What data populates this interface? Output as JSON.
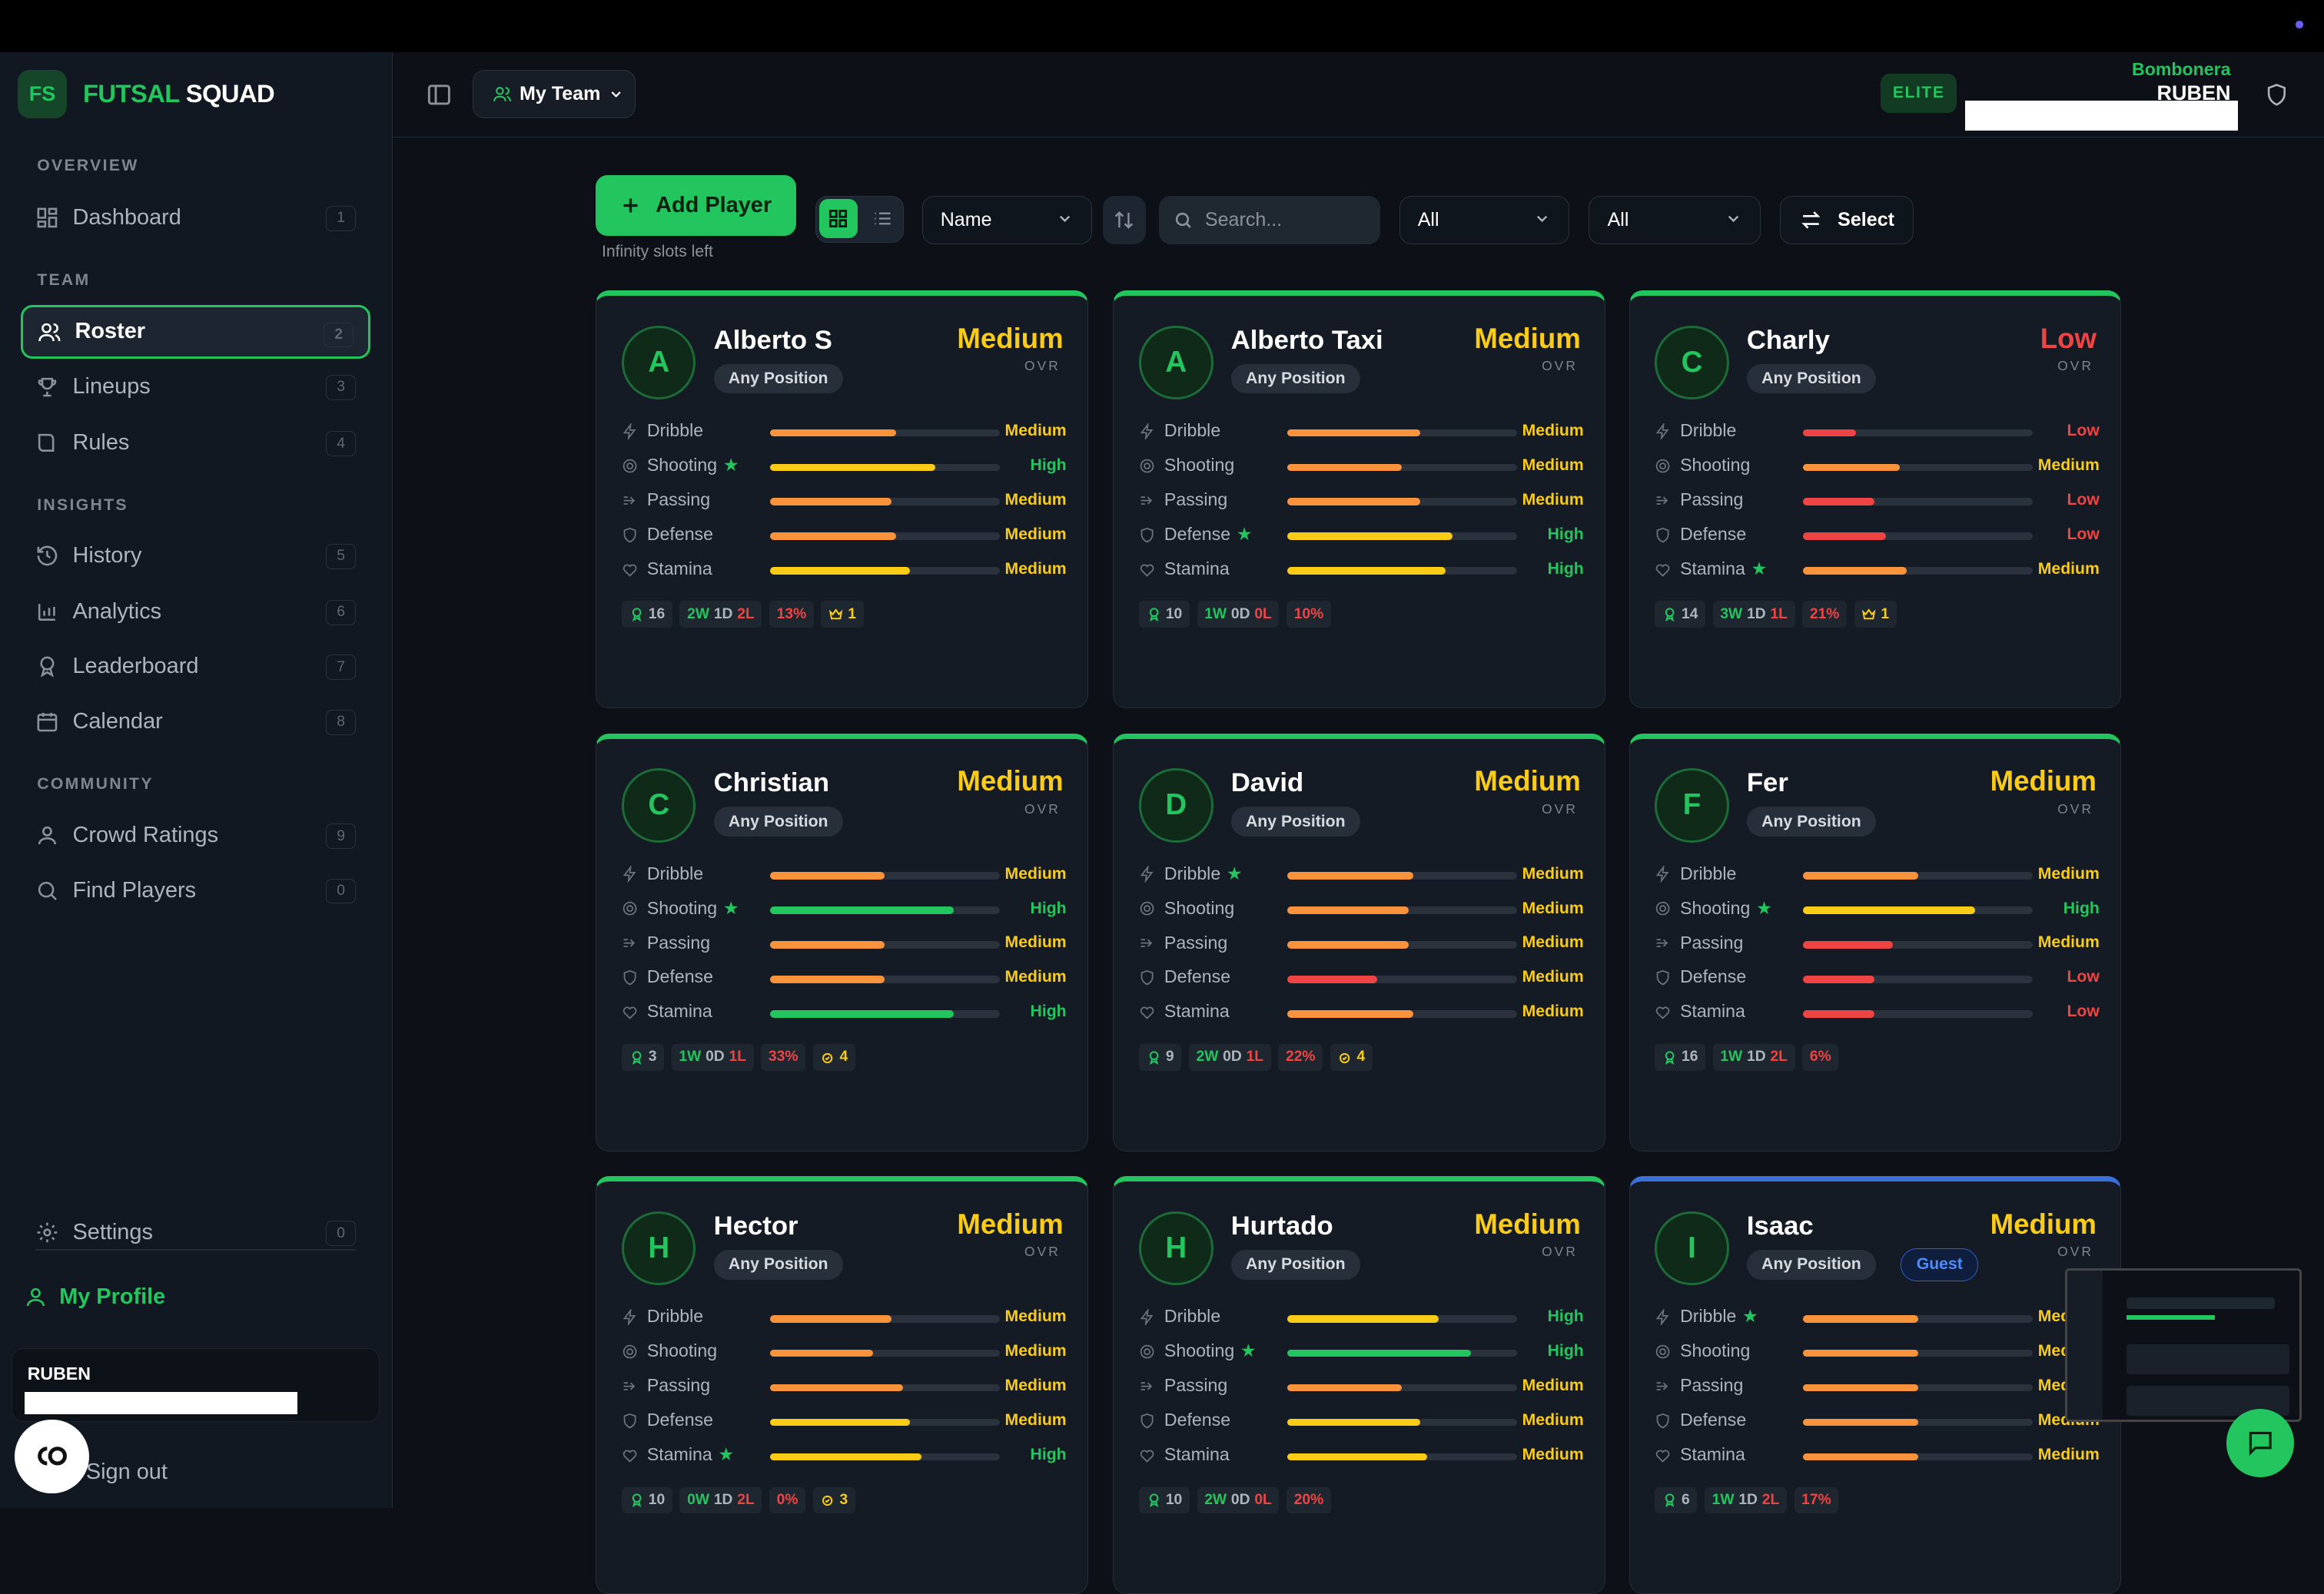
{
  "app": {
    "logo": "FS",
    "brand_a": "FUTSAL",
    "brand_b": "SQUAD"
  },
  "sidebar": {
    "sections": {
      "overview": "OVERVIEW",
      "team": "TEAM",
      "insights": "INSIGHTS",
      "community": "COMMUNITY"
    },
    "items": [
      {
        "label": "Dashboard",
        "num": "1",
        "icon": "dashboard-icon"
      },
      {
        "label": "Roster",
        "num": "2",
        "icon": "users-icon",
        "active": true
      },
      {
        "label": "Lineups",
        "num": "3",
        "icon": "trophy-icon"
      },
      {
        "label": "Rules",
        "num": "4",
        "icon": "book-icon"
      },
      {
        "label": "History",
        "num": "5",
        "icon": "history-icon"
      },
      {
        "label": "Analytics",
        "num": "6",
        "icon": "bar-chart-icon"
      },
      {
        "label": "Leaderboard",
        "num": "7",
        "icon": "award-icon"
      },
      {
        "label": "Calendar",
        "num": "8",
        "icon": "calendar-icon"
      },
      {
        "label": "Crowd Ratings",
        "num": "9",
        "icon": "user-icon"
      },
      {
        "label": "Find Players",
        "num": "0",
        "icon": "search-icon"
      }
    ],
    "settings": {
      "label": "Settings",
      "num": "0"
    },
    "my_profile": "My Profile",
    "user": "RUBEN",
    "sign_out": "Sign out",
    "bottom_button": "CO"
  },
  "header": {
    "team_select": "My Team",
    "badge": "ELITE",
    "club": "Bombonera",
    "user": "RUBEN"
  },
  "toolbar": {
    "add_player": "Add Player",
    "slots": "Infinity slots left",
    "sort": "Name",
    "search_placeholder": "Search...",
    "filter1": "All",
    "filter2": "All",
    "select": "Select"
  },
  "colors": {
    "high": "#22c55e",
    "medium": "#facc15",
    "low": "#ef4444",
    "mid_bar": "#fb923c",
    "accent": "#22c55e",
    "guest": "#3b82f6"
  },
  "ovr_label": "OVR",
  "players": [
    {
      "initial": "A",
      "name": "Alberto S",
      "position": "Any Position",
      "ovr": "Medium",
      "ovr_color": "#facc15",
      "stats": [
        {
          "name": "Dribble",
          "level": "Medium",
          "fill": 0.55,
          "bar": "#fb923c",
          "lc": "#facc15"
        },
        {
          "name": "Shooting",
          "star": true,
          "level": "High",
          "fill": 0.72,
          "bar": "#facc15",
          "lc": "#22c55e"
        },
        {
          "name": "Passing",
          "level": "Medium",
          "fill": 0.53,
          "bar": "#fb923c",
          "lc": "#facc15"
        },
        {
          "name": "Defense",
          "level": "Medium",
          "fill": 0.55,
          "bar": "#fb923c",
          "lc": "#facc15"
        },
        {
          "name": "Stamina",
          "level": "Medium",
          "fill": 0.61,
          "bar": "#facc15",
          "lc": "#facc15"
        }
      ],
      "games": "16",
      "w": "2W",
      "d": "1D",
      "l": "2L",
      "pct": "13%",
      "extra": "1",
      "extra_icon": "crown-icon"
    },
    {
      "initial": "A",
      "name": "Alberto Taxi",
      "position": "Any Position",
      "ovr": "Medium",
      "ovr_color": "#facc15",
      "stats": [
        {
          "name": "Dribble",
          "level": "Medium",
          "fill": 0.58,
          "bar": "#fb923c",
          "lc": "#facc15"
        },
        {
          "name": "Shooting",
          "level": "Medium",
          "fill": 0.5,
          "bar": "#fb923c",
          "lc": "#facc15"
        },
        {
          "name": "Passing",
          "level": "Medium",
          "fill": 0.58,
          "bar": "#fb923c",
          "lc": "#facc15"
        },
        {
          "name": "Defense",
          "star": true,
          "level": "High",
          "fill": 0.72,
          "bar": "#facc15",
          "lc": "#22c55e"
        },
        {
          "name": "Stamina",
          "level": "High",
          "fill": 0.69,
          "bar": "#facc15",
          "lc": "#22c55e"
        }
      ],
      "games": "10",
      "w": "1W",
      "d": "0D",
      "l": "0L",
      "pct": "10%",
      "extra": ""
    },
    {
      "initial": "C",
      "name": "Charly",
      "position": "Any Position",
      "ovr": "Low",
      "ovr_color": "#ef4444",
      "stats": [
        {
          "name": "Dribble",
          "level": "Low",
          "fill": 0.23,
          "bar": "#ef4444",
          "lc": "#ef4444"
        },
        {
          "name": "Shooting",
          "level": "Medium",
          "fill": 0.42,
          "bar": "#fb923c",
          "lc": "#facc15"
        },
        {
          "name": "Passing",
          "level": "Low",
          "fill": 0.31,
          "bar": "#ef4444",
          "lc": "#ef4444"
        },
        {
          "name": "Defense",
          "level": "Low",
          "fill": 0.36,
          "bar": "#ef4444",
          "lc": "#ef4444"
        },
        {
          "name": "Stamina",
          "star": true,
          "level": "Medium",
          "fill": 0.45,
          "bar": "#fb923c",
          "lc": "#facc15"
        }
      ],
      "games": "14",
      "w": "3W",
      "d": "1D",
      "l": "1L",
      "pct": "21%",
      "extra": "1",
      "extra_icon": "crown-icon"
    },
    {
      "initial": "C",
      "name": "Christian",
      "position": "Any Position",
      "ovr": "Medium",
      "ovr_color": "#facc15",
      "stats": [
        {
          "name": "Dribble",
          "level": "Medium",
          "fill": 0.5,
          "bar": "#fb923c",
          "lc": "#facc15"
        },
        {
          "name": "Shooting",
          "star": true,
          "level": "High",
          "fill": 0.8,
          "bar": "#22c55e",
          "lc": "#22c55e"
        },
        {
          "name": "Passing",
          "level": "Medium",
          "fill": 0.5,
          "bar": "#fb923c",
          "lc": "#facc15"
        },
        {
          "name": "Defense",
          "level": "Medium",
          "fill": 0.5,
          "bar": "#fb923c",
          "lc": "#facc15"
        },
        {
          "name": "Stamina",
          "level": "High",
          "fill": 0.8,
          "bar": "#22c55e",
          "lc": "#22c55e"
        }
      ],
      "games": "3",
      "w": "1W",
      "d": "0D",
      "l": "1L",
      "pct": "33%",
      "extra": "4",
      "extra_icon": "medal-icon"
    },
    {
      "initial": "D",
      "name": "David",
      "position": "Any Position",
      "ovr": "Medium",
      "ovr_color": "#facc15",
      "stats": [
        {
          "name": "Dribble",
          "star": true,
          "level": "Medium",
          "fill": 0.55,
          "bar": "#fb923c",
          "lc": "#facc15"
        },
        {
          "name": "Shooting",
          "level": "Medium",
          "fill": 0.53,
          "bar": "#fb923c",
          "lc": "#facc15"
        },
        {
          "name": "Passing",
          "level": "Medium",
          "fill": 0.53,
          "bar": "#fb923c",
          "lc": "#facc15"
        },
        {
          "name": "Defense",
          "level": "Medium",
          "fill": 0.39,
          "bar": "#ef4444",
          "lc": "#facc15"
        },
        {
          "name": "Stamina",
          "level": "Medium",
          "fill": 0.55,
          "bar": "#fb923c",
          "lc": "#facc15"
        }
      ],
      "games": "9",
      "w": "2W",
      "d": "0D",
      "l": "1L",
      "pct": "22%",
      "extra": "4",
      "extra_icon": "medal-icon"
    },
    {
      "initial": "F",
      "name": "Fer",
      "position": "Any Position",
      "ovr": "Medium",
      "ovr_color": "#facc15",
      "stats": [
        {
          "name": "Dribble",
          "level": "Medium",
          "fill": 0.5,
          "bar": "#fb923c",
          "lc": "#facc15"
        },
        {
          "name": "Shooting",
          "star": true,
          "level": "High",
          "fill": 0.75,
          "bar": "#facc15",
          "lc": "#22c55e"
        },
        {
          "name": "Passing",
          "level": "Medium",
          "fill": 0.39,
          "bar": "#ef4444",
          "lc": "#facc15"
        },
        {
          "name": "Defense",
          "level": "Low",
          "fill": 0.31,
          "bar": "#ef4444",
          "lc": "#ef4444"
        },
        {
          "name": "Stamina",
          "level": "Low",
          "fill": 0.31,
          "bar": "#ef4444",
          "lc": "#ef4444"
        }
      ],
      "games": "16",
      "w": "1W",
      "d": "1D",
      "l": "2L",
      "pct": "6%",
      "extra": ""
    },
    {
      "initial": "H",
      "name": "Hector",
      "position": "Any Position",
      "ovr": "Medium",
      "ovr_color": "#facc15",
      "stats": [
        {
          "name": "Dribble",
          "level": "Medium",
          "fill": 0.53,
          "bar": "#fb923c",
          "lc": "#facc15"
        },
        {
          "name": "Shooting",
          "level": "Medium",
          "fill": 0.45,
          "bar": "#fb923c",
          "lc": "#facc15"
        },
        {
          "name": "Passing",
          "level": "Medium",
          "fill": 0.58,
          "bar": "#fb923c",
          "lc": "#facc15"
        },
        {
          "name": "Defense",
          "level": "Medium",
          "fill": 0.61,
          "bar": "#facc15",
          "lc": "#facc15"
        },
        {
          "name": "Stamina",
          "star": true,
          "level": "High",
          "fill": 0.66,
          "bar": "#facc15",
          "lc": "#22c55e"
        }
      ],
      "games": "10",
      "w": "0W",
      "d": "1D",
      "l": "2L",
      "pct": "0%",
      "extra": "3",
      "extra_icon": "medal-icon"
    },
    {
      "initial": "H",
      "name": "Hurtado",
      "position": "Any Position",
      "ovr": "Medium",
      "ovr_color": "#facc15",
      "stats": [
        {
          "name": "Dribble",
          "level": "High",
          "fill": 0.66,
          "bar": "#facc15",
          "lc": "#22c55e"
        },
        {
          "name": "Shooting",
          "star": true,
          "level": "High",
          "fill": 0.8,
          "bar": "#22c55e",
          "lc": "#22c55e"
        },
        {
          "name": "Passing",
          "level": "Medium",
          "fill": 0.5,
          "bar": "#fb923c",
          "lc": "#facc15"
        },
        {
          "name": "Defense",
          "level": "Medium",
          "fill": 0.58,
          "bar": "#facc15",
          "lc": "#facc15"
        },
        {
          "name": "Stamina",
          "level": "Medium",
          "fill": 0.61,
          "bar": "#facc15",
          "lc": "#facc15"
        }
      ],
      "games": "10",
      "w": "2W",
      "d": "0D",
      "l": "0L",
      "pct": "20%",
      "extra": ""
    },
    {
      "initial": "I",
      "name": "Isaac",
      "position": "Any Position",
      "guest": "Guest",
      "ovr": "Medium",
      "ovr_color": "#facc15",
      "stats": [
        {
          "name": "Dribble",
          "star": true,
          "level": "Medium",
          "fill": 0.5,
          "bar": "#fb923c",
          "lc": "#facc15"
        },
        {
          "name": "Shooting",
          "level": "Medium",
          "fill": 0.5,
          "bar": "#fb923c",
          "lc": "#facc15"
        },
        {
          "name": "Passing",
          "level": "Medium",
          "fill": 0.5,
          "bar": "#fb923c",
          "lc": "#facc15"
        },
        {
          "name": "Defense",
          "level": "Medium",
          "fill": 0.5,
          "bar": "#fb923c",
          "lc": "#facc15"
        },
        {
          "name": "Stamina",
          "level": "Medium",
          "fill": 0.5,
          "bar": "#fb923c",
          "lc": "#facc15"
        }
      ],
      "games": "6",
      "w": "1W",
      "d": "1D",
      "l": "2L",
      "pct": "17%",
      "extra": ""
    }
  ]
}
